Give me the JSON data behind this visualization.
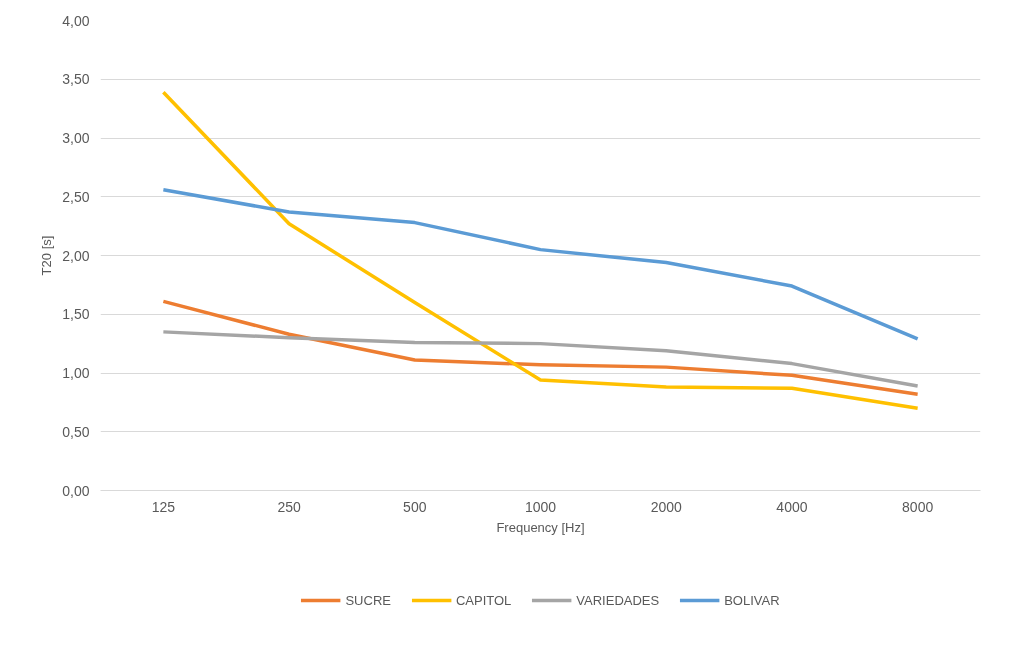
{
  "chart_data": {
    "type": "line",
    "xlabel": "Frequency [Hz]",
    "ylabel": "T20 [s]",
    "categories": [
      "125",
      "250",
      "500",
      "1000",
      "2000",
      "4000",
      "8000"
    ],
    "series": [
      {
        "name": "SUCRE",
        "color": "#ed7d31",
        "values": [
          1.61,
          1.33,
          1.11,
          1.07,
          1.05,
          0.98,
          0.82
        ]
      },
      {
        "name": "CAPITOL",
        "color": "#ffc000",
        "values": [
          3.39,
          2.27,
          1.6,
          0.94,
          0.88,
          0.87,
          0.7
        ]
      },
      {
        "name": "VARIEDADES",
        "color": "#a5a5a5",
        "values": [
          1.35,
          1.3,
          1.26,
          1.25,
          1.19,
          1.08,
          0.89
        ]
      },
      {
        "name": "BOLIVAR",
        "color": "#5b9bd5",
        "values": [
          2.56,
          2.37,
          2.28,
          2.05,
          1.94,
          1.74,
          1.29
        ]
      }
    ],
    "ylim": [
      0,
      4
    ],
    "yticks": [
      {
        "value": 0,
        "label": "0,00"
      },
      {
        "value": 0.5,
        "label": "0,50"
      },
      {
        "value": 1,
        "label": "1,00"
      },
      {
        "value": 1.5,
        "label": "1,50"
      },
      {
        "value": 2,
        "label": "2,00"
      },
      {
        "value": 2.5,
        "label": "2,50"
      },
      {
        "value": 3,
        "label": "3,00"
      },
      {
        "value": 3.5,
        "label": "3,50"
      },
      {
        "value": 4,
        "label": "4,00"
      }
    ],
    "grid": "y",
    "legend": "bottom",
    "marker": "none",
    "line_style": "solid"
  }
}
